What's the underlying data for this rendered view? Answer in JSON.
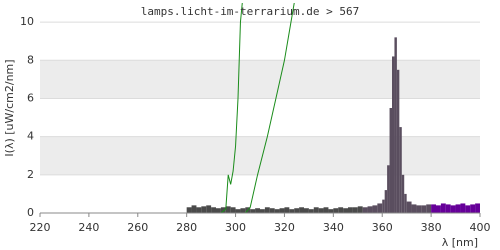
{
  "chart_data": {
    "type": "spectrum",
    "title": "lamps.licht-im-terrarium.de > 567",
    "x_label": "λ [nm]",
    "y_label": "I(λ)  [uW/cm2/nm]",
    "xlim": [
      220,
      400
    ],
    "xticks": [
      220,
      240,
      260,
      280,
      300,
      320,
      340,
      360,
      380,
      400
    ],
    "ylim": [
      0,
      11
    ],
    "yticks": [
      0,
      2,
      4,
      6,
      8,
      10
    ],
    "grid": true,
    "series": [
      {
        "color": "#4a4a4a",
        "x": [
          280,
          282,
          284,
          286,
          288,
          290,
          292,
          294,
          296,
          298,
          300,
          302,
          304,
          306,
          308,
          310,
          312,
          314,
          316,
          318,
          320,
          322,
          324,
          326,
          328,
          330,
          332,
          334,
          336,
          338,
          340,
          342,
          344,
          346,
          348,
          350
        ],
        "values": [
          0.3,
          0.4,
          0.3,
          0.35,
          0.4,
          0.3,
          0.25,
          0.3,
          0.35,
          0.3,
          0.2,
          0.25,
          0.3,
          0.2,
          0.25,
          0.2,
          0.3,
          0.25,
          0.2,
          0.25,
          0.3,
          0.2,
          0.25,
          0.3,
          0.25,
          0.2,
          0.3,
          0.25,
          0.3,
          0.2,
          0.25,
          0.3,
          0.25,
          0.3,
          0.3,
          0.35
        ]
      },
      {
        "color": "#5a4e5f",
        "x": [
          352,
          354,
          356,
          358,
          360,
          361,
          362,
          363,
          364,
          365,
          366,
          367,
          368,
          369,
          370,
          372,
          374,
          376,
          378
        ],
        "values": [
          0.3,
          0.35,
          0.4,
          0.5,
          0.7,
          1.2,
          2.5,
          5.5,
          8.2,
          9.2,
          7.5,
          4.5,
          2,
          1,
          0.6,
          0.45,
          0.4,
          0.4,
          0.45
        ]
      },
      {
        "color": "#660099",
        "x": [
          380,
          382,
          384,
          386,
          388,
          390,
          392,
          394,
          396,
          398,
          400
        ],
        "values": [
          0.45,
          0.4,
          0.5,
          0.45,
          0.4,
          0.45,
          0.5,
          0.4,
          0.45,
          0.5,
          0.6
        ]
      }
    ],
    "curves": [
      {
        "color": "#1a8c1a",
        "x": [
          280,
          290,
          294,
          296,
          297,
          298,
          299,
          300,
          301,
          302,
          303.5
        ],
        "values": [
          0,
          0,
          0,
          0.2,
          2,
          1.5,
          2.2,
          3.5,
          6,
          10,
          12
        ]
      },
      {
        "color": "#1a8c1a",
        "x": [
          280,
          300,
          304,
          306,
          309,
          313,
          316.5,
          320,
          322,
          324,
          326
        ],
        "values": [
          0,
          0,
          0,
          0.3,
          2,
          4,
          6,
          8,
          9.5,
          11,
          12
        ]
      }
    ]
  }
}
